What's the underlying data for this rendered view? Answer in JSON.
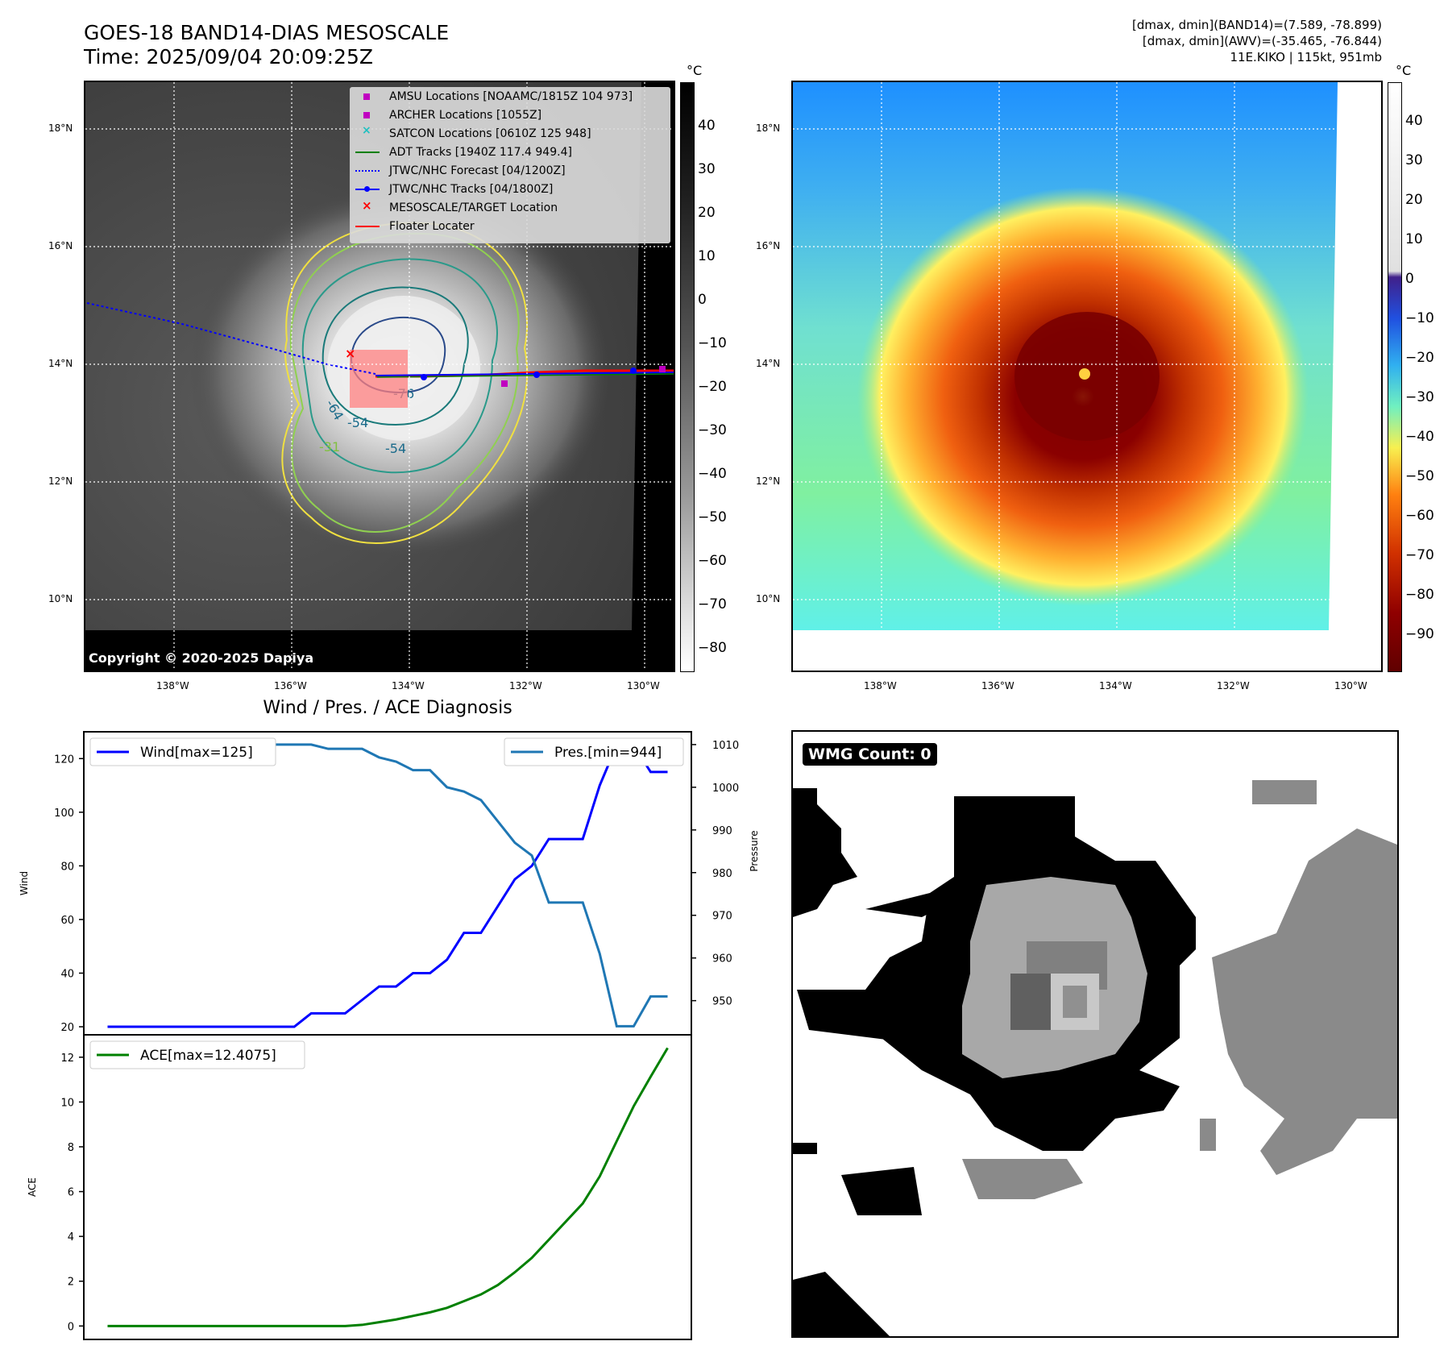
{
  "header": {
    "title_line1": "GOES-18 BAND14-DIAS MESOSCALE",
    "title_line2": "Time: 2025/09/04 20:09:25Z",
    "meta_line1": "[dmax, dmin](BAND14)=(7.589, -78.899)",
    "meta_line2": "[dmax, dmin](AWV)=(-35.465, -76.844)",
    "meta_line3": "11E.KIKO | 115kt, 951mb"
  },
  "ir_panel": {
    "lat_ticks": [
      "18°N",
      "16°N",
      "14°N",
      "12°N",
      "10°N"
    ],
    "lon_ticks": [
      "138°W",
      "136°W",
      "134°W",
      "132°W",
      "130°W"
    ],
    "contour_labels": [
      "-64",
      "-76",
      "-54",
      "-31",
      "-54"
    ],
    "copyright": "Copyright © 2020-2025 Dapiya",
    "legend": [
      "AMSU Locations [NOAAMC/1815Z 104 973]",
      "ARCHER Locations [1055Z]",
      "SATCON Locations [0610Z 125 948]",
      "ADT Tracks [1940Z 117.4 949.4]",
      "JTWC/NHC Forecast [04/1200Z]",
      "JTWC/NHC Tracks [04/1800Z]",
      "MESOSCALE/TARGET Location",
      "Floater Locater"
    ],
    "colors": {
      "amsu": "#c000c0",
      "satcon": "#20c0c0",
      "adt": "#008000",
      "forecast": "#0000ff",
      "track": "#0000ff",
      "target": "#ff0000",
      "floater": "#ff0000"
    },
    "colorbar_unit": "°C",
    "colorbar_ticks": [
      "40",
      "30",
      "20",
      "10",
      "0",
      "−10",
      "−20",
      "−30",
      "−40",
      "−50",
      "−60",
      "−70",
      "−80"
    ]
  },
  "color_panel": {
    "lat_ticks": [
      "18°N",
      "16°N",
      "14°N",
      "12°N",
      "10°N"
    ],
    "lon_ticks": [
      "138°W",
      "136°W",
      "134°W",
      "132°W",
      "130°W"
    ],
    "colorbar_unit": "°C",
    "colorbar_ticks": [
      "40",
      "30",
      "20",
      "10",
      "0",
      "−10",
      "−20",
      "−30",
      "−40",
      "−50",
      "−60",
      "−70",
      "−80",
      "−90"
    ]
  },
  "chart_data": [
    {
      "type": "line",
      "title": "Wind / Pres. / ACE Diagnosis",
      "xlabel": "",
      "ylabel": "Wind",
      "y2label": "Pressure",
      "ylim": [
        17,
        130
      ],
      "y2lim": [
        942,
        1013
      ],
      "yticks": [
        20,
        40,
        60,
        80,
        100,
        120
      ],
      "y2ticks": [
        950,
        960,
        970,
        980,
        990,
        1000,
        1010
      ],
      "x": [
        0,
        1,
        2,
        3,
        4,
        5,
        6,
        7,
        8,
        9,
        10,
        11,
        12,
        13,
        14,
        15,
        16,
        17,
        18,
        19,
        20,
        21,
        22,
        23,
        24,
        25,
        26,
        27,
        28,
        29,
        30,
        31,
        32,
        33
      ],
      "series": [
        {
          "name": "Wind[max=125]",
          "color": "#0000ff",
          "axis": "left",
          "values": [
            20,
            20,
            20,
            20,
            20,
            20,
            20,
            20,
            20,
            20,
            20,
            20,
            25,
            25,
            25,
            30,
            35,
            35,
            40,
            40,
            45,
            55,
            55,
            65,
            75,
            80,
            90,
            90,
            90,
            110,
            125,
            125,
            115,
            115
          ]
        },
        {
          "name": "Pres.[min=944]",
          "color": "#1f77b4",
          "axis": "right",
          "values": [
            1010,
            1010,
            1010,
            1010,
            1010,
            1010,
            1010,
            1010,
            1010,
            1010,
            1010,
            1010,
            1010,
            1009,
            1009,
            1009,
            1007,
            1006,
            1004,
            1004,
            1000,
            999,
            997,
            992,
            987,
            984,
            973,
            973,
            973,
            961,
            944,
            944,
            951,
            951
          ]
        }
      ]
    },
    {
      "type": "line",
      "xlabel": "",
      "ylabel": "ACE",
      "ylim": [
        -0.6,
        13.0
      ],
      "yticks": [
        0,
        2,
        4,
        6,
        8,
        10,
        12
      ],
      "x": [
        0,
        1,
        2,
        3,
        4,
        5,
        6,
        7,
        8,
        9,
        10,
        11,
        12,
        13,
        14,
        15,
        16,
        17,
        18,
        19,
        20,
        21,
        22,
        23,
        24,
        25,
        26,
        27,
        28,
        29,
        30,
        31,
        32,
        33
      ],
      "series": [
        {
          "name": "ACE[max=12.4075]",
          "color": "#008000",
          "values": [
            0,
            0,
            0,
            0,
            0,
            0,
            0,
            0,
            0,
            0,
            0,
            0,
            0,
            0,
            0,
            0.05,
            0.17,
            0.29,
            0.45,
            0.61,
            0.81,
            1.11,
            1.41,
            1.83,
            2.4,
            3.04,
            3.85,
            4.66,
            5.47,
            6.68,
            8.25,
            9.81,
            11.13,
            12.41
          ]
        }
      ]
    }
  ],
  "wmg_panel": {
    "label": "WMG Count: 0"
  }
}
